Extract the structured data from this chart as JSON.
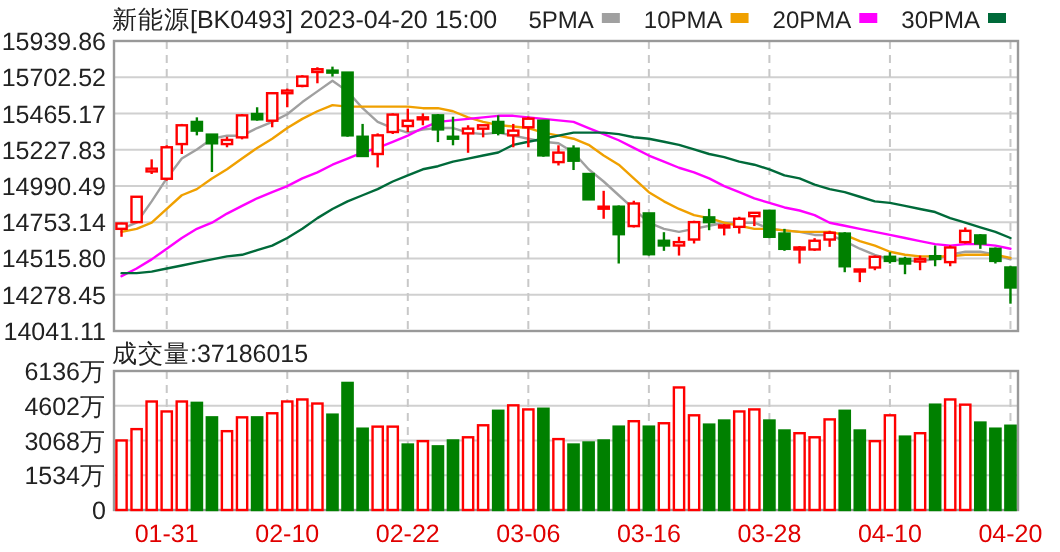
{
  "chart_data": [
    {
      "type": "candlestick",
      "title": "新能源[BK0493] 2023-04-20 15:00",
      "categories": [
        null,
        null,
        null,
        null,
        null,
        null,
        null,
        null,
        null,
        null,
        null,
        null,
        null,
        null,
        null,
        null,
        null,
        null,
        null,
        null,
        null,
        null,
        null,
        null,
        null,
        null,
        null,
        null,
        null,
        null,
        null,
        null,
        null,
        null,
        null,
        null,
        null,
        null,
        null,
        null,
        null,
        null,
        null,
        null,
        null,
        null,
        null,
        null,
        null,
        null,
        null,
        null,
        null,
        null,
        null,
        null,
        null,
        null,
        null,
        null
      ],
      "ohlc": [
        [
          14710,
          14750,
          14658,
          14745
        ],
        [
          14754,
          14920,
          14750,
          14920
        ],
        [
          15086,
          15165,
          15069,
          15104
        ],
        [
          15038,
          15257,
          15025,
          15244
        ],
        [
          15265,
          15397,
          15200,
          15388
        ],
        [
          15410,
          15440,
          15322,
          15353
        ],
        [
          15327,
          15331,
          15082,
          15270
        ],
        [
          15265,
          15313,
          15244,
          15292
        ],
        [
          15309,
          15462,
          15296,
          15453
        ],
        [
          15462,
          15506,
          15418,
          15427
        ],
        [
          15418,
          15606,
          15375,
          15598
        ],
        [
          15598,
          15628,
          15506,
          15615
        ],
        [
          15646,
          15716,
          15637,
          15707
        ],
        [
          15737,
          15768,
          15663,
          15755
        ],
        [
          15746,
          15772,
          15707,
          15737
        ],
        [
          15733,
          15733,
          15313,
          15322
        ],
        [
          15313,
          15397,
          15187,
          15187
        ],
        [
          15200,
          15335,
          15112,
          15322
        ],
        [
          15344,
          15466,
          15331,
          15458
        ],
        [
          15383,
          15497,
          15344,
          15418
        ],
        [
          15431,
          15466,
          15388,
          15440
        ],
        [
          15453,
          15462,
          15278,
          15361
        ],
        [
          15313,
          15444,
          15257,
          15305
        ],
        [
          15335,
          15388,
          15208,
          15366
        ],
        [
          15366,
          15388,
          15309,
          15388
        ],
        [
          15410,
          15453,
          15322,
          15339
        ],
        [
          15322,
          15397,
          15244,
          15353
        ],
        [
          15375,
          15444,
          15244,
          15431
        ],
        [
          15418,
          15422,
          15182,
          15191
        ],
        [
          15147,
          15257,
          15125,
          15209
        ],
        [
          15235,
          15257,
          15095,
          15156
        ],
        [
          15069,
          15069,
          14903,
          14903
        ],
        [
          14846,
          14959,
          14776,
          14855
        ],
        [
          14855,
          14863,
          14483,
          14675
        ],
        [
          14728,
          14894,
          14719,
          14876
        ],
        [
          14811,
          14811,
          14535,
          14544
        ],
        [
          14632,
          14688,
          14566,
          14601
        ],
        [
          14601,
          14658,
          14535,
          14623
        ],
        [
          14640,
          14763,
          14614,
          14754
        ],
        [
          14785,
          14841,
          14701,
          14754
        ],
        [
          14719,
          14741,
          14667,
          14732
        ],
        [
          14723,
          14789,
          14679,
          14776
        ],
        [
          14793,
          14815,
          14728,
          14815
        ],
        [
          14828,
          14828,
          14649,
          14658
        ],
        [
          14679,
          14710,
          14566,
          14579
        ],
        [
          14579,
          14597,
          14483,
          14588
        ],
        [
          14575,
          14649,
          14566,
          14632
        ],
        [
          14640,
          14697,
          14592,
          14684
        ],
        [
          14679,
          14688,
          14426,
          14465
        ],
        [
          14435,
          14448,
          14361,
          14444
        ],
        [
          14457,
          14535,
          14439,
          14527
        ],
        [
          14527,
          14557,
          14483,
          14500
        ],
        [
          14513,
          14527,
          14413,
          14483
        ],
        [
          14496,
          14535,
          14439,
          14513
        ],
        [
          14531,
          14601,
          14465,
          14513
        ],
        [
          14492,
          14601,
          14465,
          14588
        ],
        [
          14623,
          14719,
          14614,
          14697
        ],
        [
          14667,
          14675,
          14579,
          14614
        ],
        [
          14579,
          14588,
          14483,
          14500
        ],
        [
          14457,
          14465,
          14220,
          14326
        ]
      ],
      "colors": [
        "#ff0000",
        "#ff0000",
        "#ff0000",
        "#ff0000",
        "#ff0000",
        "#008000",
        "#008000",
        "#ff0000",
        "#ff0000",
        "#008000",
        "#ff0000",
        "#ff0000",
        "#ff0000",
        "#ff0000",
        "#008000",
        "#008000",
        "#008000",
        "#ff0000",
        "#ff0000",
        "#ff0000",
        "#ff0000",
        "#008000",
        "#008000",
        "#ff0000",
        "#ff0000",
        "#008000",
        "#ff0000",
        "#ff0000",
        "#008000",
        "#ff0000",
        "#008000",
        "#008000",
        "#ff0000",
        "#008000",
        "#ff0000",
        "#008000",
        "#008000",
        "#ff0000",
        "#ff0000",
        "#008000",
        "#ff0000",
        "#ff0000",
        "#ff0000",
        "#008000",
        "#008000",
        "#ff0000",
        "#ff0000",
        "#ff0000",
        "#008000",
        "#ff0000",
        "#ff0000",
        "#008000",
        "#008000",
        "#ff0000",
        "#008000",
        "#ff0000",
        "#ff0000",
        "#008000",
        "#008000",
        "#008000"
      ],
      "series": [
        {
          "name": "5PMA",
          "type": "line",
          "color": "#a0a0a0",
          "values": [
            14710,
            14750,
            14890,
            15040,
            15170,
            15230,
            15300,
            15320,
            15320,
            15370,
            15410,
            15460,
            15540,
            15610,
            15680,
            15610,
            15500,
            15410,
            15370,
            15340,
            15360,
            15370,
            15370,
            15340,
            15330,
            15340,
            15320,
            15300,
            15280,
            15270,
            15210,
            15100,
            15020,
            14930,
            14840,
            14750,
            14710,
            14690,
            14710,
            14730,
            14750,
            14750,
            14750,
            14710,
            14700,
            14690,
            14670,
            14670,
            14630,
            14580,
            14540,
            14510,
            14500,
            14500,
            14510,
            14540,
            14560,
            14560,
            14540,
            14510
          ]
        },
        {
          "name": "10PMA",
          "type": "line",
          "color": "#f0a000",
          "values": [
            14690,
            14710,
            14750,
            14840,
            14930,
            14970,
            15040,
            15100,
            15170,
            15240,
            15300,
            15370,
            15430,
            15480,
            15520,
            15510,
            15510,
            15510,
            15510,
            15510,
            15500,
            15500,
            15480,
            15440,
            15410,
            15390,
            15380,
            15370,
            15340,
            15320,
            15300,
            15260,
            15190,
            15130,
            15040,
            14950,
            14890,
            14840,
            14800,
            14780,
            14750,
            14730,
            14710,
            14710,
            14700,
            14690,
            14690,
            14690,
            14670,
            14630,
            14600,
            14560,
            14540,
            14530,
            14530,
            14530,
            14540,
            14540,
            14540,
            14520
          ]
        },
        {
          "name": "20PMA",
          "type": "line",
          "color": "#ff00ff",
          "values": [
            14400,
            14450,
            14510,
            14580,
            14650,
            14710,
            14750,
            14810,
            14860,
            14910,
            14950,
            14990,
            15040,
            15080,
            15130,
            15170,
            15210,
            15240,
            15280,
            15320,
            15370,
            15410,
            15420,
            15430,
            15440,
            15450,
            15450,
            15440,
            15430,
            15420,
            15410,
            15370,
            15330,
            15290,
            15240,
            15190,
            15150,
            15110,
            15080,
            15040,
            14990,
            14950,
            14910,
            14880,
            14850,
            14830,
            14800,
            14750,
            14730,
            14710,
            14690,
            14670,
            14650,
            14630,
            14610,
            14600,
            14610,
            14610,
            14600,
            14580
          ]
        },
        {
          "name": "30PMA",
          "type": "line",
          "color": "#006a3a",
          "values": [
            14420,
            14420,
            14430,
            14450,
            14470,
            14490,
            14510,
            14530,
            14540,
            14570,
            14600,
            14650,
            14710,
            14780,
            14840,
            14890,
            14930,
            14970,
            15020,
            15060,
            15100,
            15120,
            15150,
            15170,
            15190,
            15210,
            15260,
            15280,
            15300,
            15320,
            15340,
            15340,
            15340,
            15330,
            15310,
            15300,
            15280,
            15260,
            15230,
            15200,
            15180,
            15150,
            15130,
            15100,
            15060,
            15040,
            15000,
            14970,
            14950,
            14920,
            14890,
            14880,
            14860,
            14840,
            14820,
            14780,
            14750,
            14720,
            14690,
            14650
          ]
        }
      ],
      "ylim": [
        14041.11,
        15939.86
      ],
      "yticks": [
        14041.11,
        14278.45,
        {
          "value": 14515.8,
          "label": "14515.80"
        },
        14753.14,
        14990.49,
        15227.83,
        15465.17,
        15702.52,
        15939.86
      ],
      "grid": true,
      "legend": "top right",
      "tick_labels": "y"
    },
    {
      "type": "bar",
      "title": "成交量:37186015",
      "categories": [
        null,
        null,
        null,
        "01-31",
        null,
        null,
        null,
        null,
        null,
        null,
        null,
        "02-10",
        null,
        null,
        null,
        null,
        null,
        null,
        null,
        "02-22",
        null,
        null,
        null,
        null,
        null,
        null,
        null,
        "03-06",
        null,
        null,
        null,
        null,
        null,
        null,
        null,
        "03-16",
        null,
        null,
        null,
        null,
        null,
        null,
        null,
        "03-28",
        null,
        null,
        null,
        null,
        null,
        null,
        null,
        "04-10",
        null,
        null,
        null,
        null,
        null,
        null,
        null,
        "04-20"
      ],
      "values": [
        3070,
        3570,
        4790,
        4350,
        4790,
        4730,
        4090,
        3480,
        4090,
        4090,
        4270,
        4790,
        4880,
        4700,
        4210,
        5610,
        3590,
        3680,
        3680,
        2890,
        3040,
        2810,
        3070,
        3210,
        3740,
        4380,
        4620,
        4440,
        4470,
        3130,
        2890,
        2980,
        3070,
        3680,
        3920,
        3680,
        3830,
        5410,
        4180,
        3770,
        3950,
        4350,
        4440,
        3950,
        3510,
        3390,
        3210,
        4000,
        4380,
        3510,
        3040,
        4180,
        3240,
        3390,
        4650,
        4880,
        4650,
        3860,
        3590,
        3720
      ],
      "colors": [
        "#ff0000",
        "#ff0000",
        "#ff0000",
        "#ff0000",
        "#ff0000",
        "#008000",
        "#008000",
        "#ff0000",
        "#ff0000",
        "#008000",
        "#ff0000",
        "#ff0000",
        "#ff0000",
        "#ff0000",
        "#008000",
        "#008000",
        "#008000",
        "#ff0000",
        "#ff0000",
        "#008000",
        "#ff0000",
        "#008000",
        "#008000",
        "#ff0000",
        "#ff0000",
        "#008000",
        "#ff0000",
        "#ff0000",
        "#008000",
        "#ff0000",
        "#008000",
        "#008000",
        "#008000",
        "#008000",
        "#ff0000",
        "#008000",
        "#ff0000",
        "#ff0000",
        "#ff0000",
        "#008000",
        "#008000",
        "#ff0000",
        "#ff0000",
        "#008000",
        "#008000",
        "#ff0000",
        "#ff0000",
        "#ff0000",
        "#008000",
        "#008000",
        "#ff0000",
        "#ff0000",
        "#008000",
        "#ff0000",
        "#008000",
        "#ff0000",
        "#ff0000",
        "#008000",
        "#008000",
        "#008000"
      ],
      "ylim": [
        0,
        6136
      ],
      "yticks": [
        0,
        {
          "value": 1534,
          "label": "1534万"
        },
        {
          "value": 3068,
          "label": "3068万"
        },
        {
          "value": 4602,
          "label": "4602万"
        },
        {
          "value": 6136,
          "label": "6136万"
        }
      ],
      "grid": true,
      "tick_labels": true
    }
  ]
}
